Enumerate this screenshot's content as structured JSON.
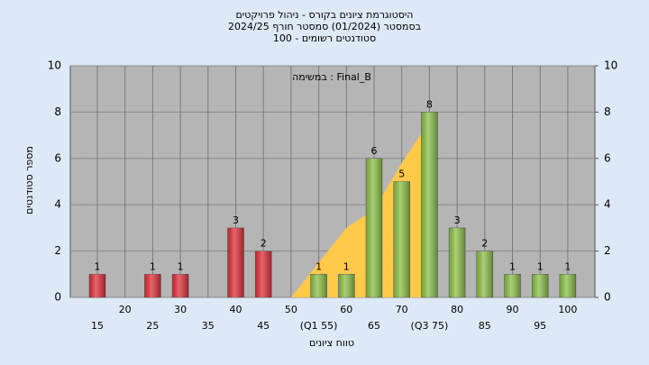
{
  "chart_data": {
    "type": "bar",
    "title": "היסטוגרמת ציונים בקורס - ניהול פרויקטים",
    "subtitle": [
      "בסמסטר  (01/2024)  סמסטר חורף 2024/25",
      "סטודנטים רשומים - 100"
    ],
    "annotation": "במשימה : Final_B",
    "y_label": "מספר סטודנטים",
    "x_label": "טווח ציונים",
    "categories": [
      "15",
      "20",
      "25",
      "30",
      "35",
      "40",
      "45",
      "50",
      "(Q1 55)",
      "60",
      "65",
      "70",
      "(Q3 75)",
      "80",
      "85",
      "90",
      "95",
      "100"
    ],
    "values": [
      1,
      0,
      1,
      1,
      0,
      3,
      2,
      0,
      1,
      1,
      6,
      5,
      8,
      3,
      2,
      1,
      1,
      1
    ],
    "colors": [
      "#e0303a",
      "#e0303a",
      "#e0303a",
      "#e0303a",
      "#e0303a",
      "#e0303a",
      "#e0303a",
      "#e0303a",
      "#8cc04a",
      "#8cc04a",
      "#8cc04a",
      "#8cc04a",
      "#8cc04a",
      "#8cc04a",
      "#8cc04a",
      "#8cc04a",
      "#8cc04a",
      "#8cc04a"
    ],
    "area": {
      "color": "#ffc94a",
      "x": [
        50,
        55,
        60,
        65,
        70,
        75
      ],
      "values": [
        0,
        1.5,
        3,
        3.8,
        5.8,
        7.6
      ]
    },
    "ylim": [
      0,
      10
    ],
    "yticks": [
      0,
      2,
      4,
      6,
      8,
      10
    ],
    "y2lim": [
      0,
      10
    ],
    "y2ticks": [
      0,
      2,
      4,
      6,
      8,
      10
    ],
    "grid": true
  }
}
